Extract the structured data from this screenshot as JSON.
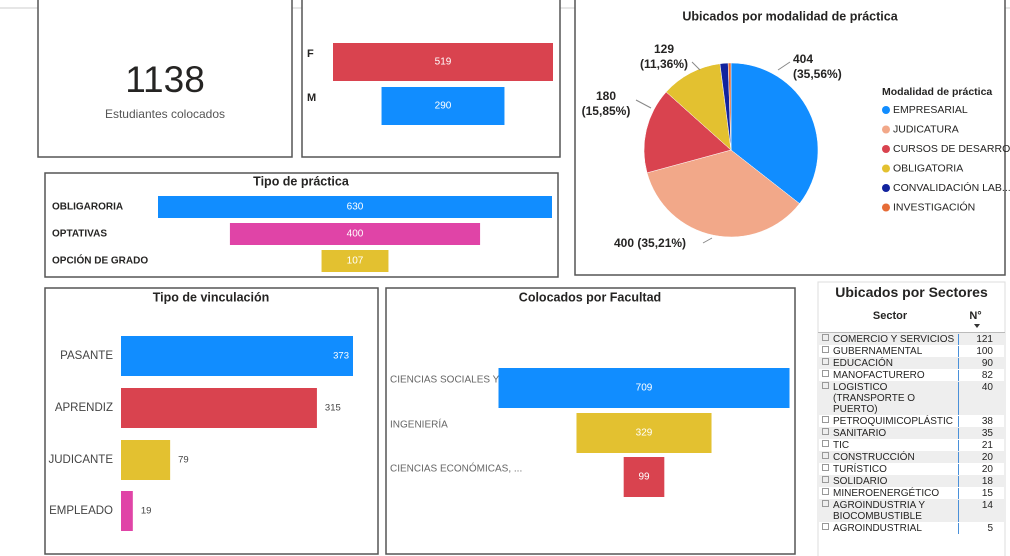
{
  "kpi": {
    "value": 1138,
    "label": "Estudiantes colocados"
  },
  "chart_data": [
    {
      "type": "funnel",
      "categories": [
        "F",
        "M"
      ],
      "values": [
        519,
        290
      ],
      "colors": [
        "#D9434F",
        "#118DFF"
      ]
    },
    {
      "type": "funnel",
      "title": "Tipo de práctica",
      "categories": [
        "OBLIGARORIA",
        "OPTATIVAS",
        "OPCIÓN DE GRADO"
      ],
      "values": [
        630,
        400,
        107
      ],
      "colors": [
        "#118DFF",
        "#E044A7",
        "#E3C130"
      ]
    },
    {
      "type": "pie",
      "title": "Ubicados por modalidad de práctica",
      "legend_title": "Modalidad de práctica",
      "categories": [
        "EMPRESARIAL",
        "JUDICATURA",
        "CURSOS DE DESARROL...",
        "OBLIGATORIA",
        "CONVALIDACIÓN LAB...",
        "INVESTIGACIÓN"
      ],
      "values": [
        404,
        400,
        180,
        129,
        17,
        6
      ],
      "value_labels": [
        "404\n(35,56%)",
        "400 (35,21%)",
        "180\n(15,85%)",
        "129\n(11,36%)",
        null,
        null
      ],
      "colors": [
        "#118DFF",
        "#F2A889",
        "#D9434F",
        "#E3C130",
        "#12239E",
        "#E66C37"
      ]
    },
    {
      "type": "bar",
      "orientation": "horizontal",
      "title": "Tipo de vinculación",
      "categories": [
        "PASANTE",
        "APRENDIZ",
        "JUDICANTE",
        "EMPLEADO"
      ],
      "values": [
        373,
        315,
        79,
        19
      ],
      "colors": [
        "#118DFF",
        "#D9434F",
        "#E3C130",
        "#E044A7"
      ]
    },
    {
      "type": "funnel",
      "title": "Colocados por Facultad",
      "categories": [
        "CIENCIAS SOCIALES Y HU...",
        "INGENIERÍA",
        "CIENCIAS ECONÓMICAS, ..."
      ],
      "values": [
        709,
        329,
        99
      ],
      "colors": [
        "#118DFF",
        "#E3C130",
        "#D9434F"
      ]
    }
  ],
  "table": {
    "title": "Ubicados por Sectores",
    "columns": [
      "Sector",
      "N°"
    ],
    "rows": [
      [
        "COMERCIO Y SERVICIOS",
        121
      ],
      [
        "GUBERNAMENTAL",
        100
      ],
      [
        "EDUCACIÓN",
        90
      ],
      [
        "MANOFACTURERO",
        82
      ],
      [
        "LOGISTICO (TRANSPORTE O PUERTO)",
        40
      ],
      [
        "PETROQUIMICOPLÁSTIC",
        38
      ],
      [
        "SANITARIO",
        35
      ],
      [
        "TIC",
        21
      ],
      [
        "CONSTRUCCIÓN",
        20
      ],
      [
        "TURÍSTICO",
        20
      ],
      [
        "SOLIDARIO",
        18
      ],
      [
        "MINEROENERGÉTICO",
        15
      ],
      [
        "AGROINDUSTRIA Y BIOCOMBUSTIBLE",
        14
      ],
      [
        "AGROINDUSTRIAL",
        5
      ]
    ]
  }
}
